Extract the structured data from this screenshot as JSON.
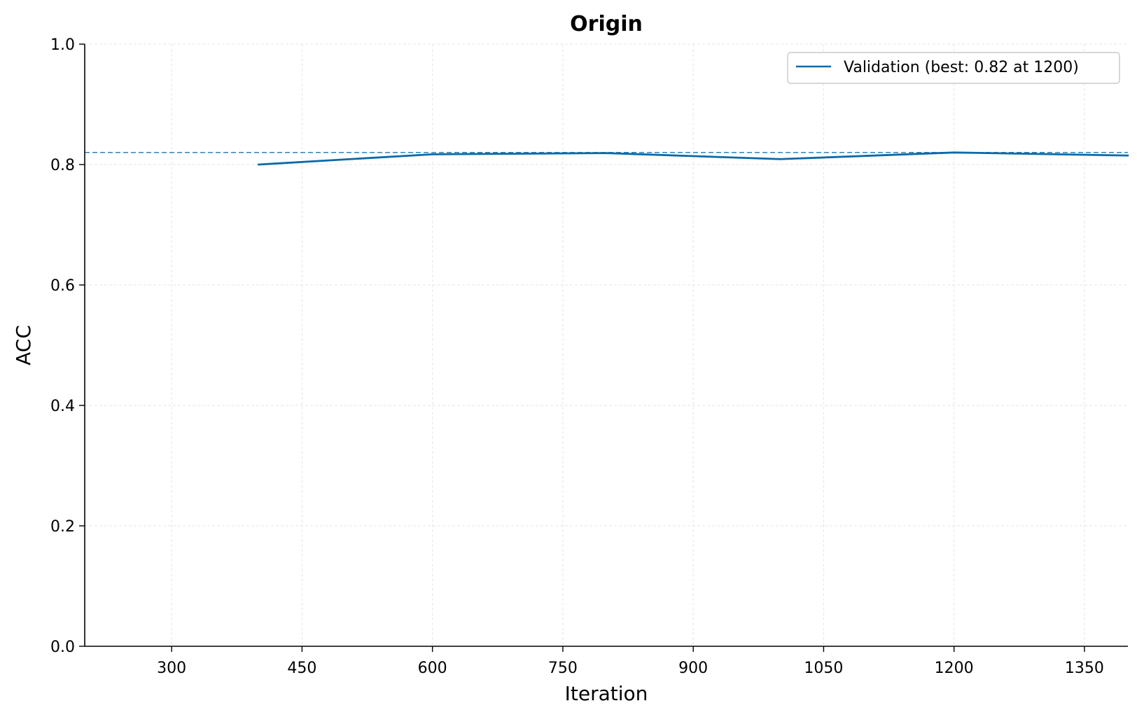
{
  "chart_data": {
    "type": "line",
    "title": "Origin",
    "xlabel": "Iteration",
    "ylabel": "ACC",
    "xlim": [
      200,
      1400
    ],
    "ylim": [
      0.0,
      1.0
    ],
    "x_ticks": [
      300,
      450,
      600,
      750,
      900,
      1050,
      1200,
      1350
    ],
    "y_ticks": [
      0.0,
      0.2,
      0.4,
      0.6,
      0.8,
      1.0
    ],
    "x_tick_labels": [
      "300",
      "450",
      "600",
      "750",
      "900",
      "1050",
      "1200",
      "1350"
    ],
    "y_tick_labels": [
      "0.0",
      "0.2",
      "0.4",
      "0.6",
      "0.8",
      "1.0"
    ],
    "grid": true,
    "legend_position": "top-right",
    "series": [
      {
        "name": "Validation (best: 0.82 at 1200)",
        "color": "#0a6aa8",
        "x": [
          400,
          600,
          800,
          1000,
          1200,
          1400
        ],
        "y": [
          0.8,
          0.817,
          0.819,
          0.809,
          0.82,
          0.815
        ]
      }
    ],
    "reference_line": {
      "y": 0.82,
      "color": "#2f84bc",
      "style": "dashed"
    }
  }
}
